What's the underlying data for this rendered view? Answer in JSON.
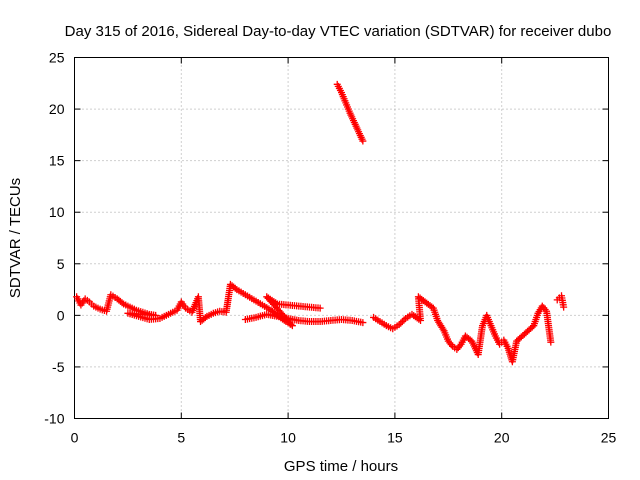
{
  "chart_data": {
    "type": "scatter",
    "title": "Day 315 of 2016, Sidereal Day-to-day VTEC variation (SDTVAR) for receiver dubo",
    "xlabel": "GPS time / hours",
    "ylabel": "SDTVAR / TECUs",
    "xlim": [
      0,
      25
    ],
    "ylim": [
      -10,
      25
    ],
    "xticks": [
      0,
      5,
      10,
      15,
      20,
      25
    ],
    "yticks": [
      -10,
      -5,
      0,
      5,
      10,
      15,
      20,
      25
    ],
    "xtick_labels": [
      "0",
      "5",
      "10",
      "15",
      "20",
      "25"
    ],
    "ytick_labels": [
      "-10",
      "-5",
      "0",
      "5",
      "10",
      "15",
      "20",
      "25"
    ],
    "grid": true,
    "marker": "+",
    "marker_color": "#ff0000",
    "series": [
      {
        "name": "SDTVAR",
        "points": [
          [
            0.1,
            1.8
          ],
          [
            0.2,
            1.4
          ],
          [
            0.3,
            1.0
          ],
          [
            0.5,
            1.6
          ],
          [
            0.7,
            1.3
          ],
          [
            0.9,
            0.9
          ],
          [
            1.2,
            0.6
          ],
          [
            1.5,
            0.4
          ],
          [
            1.7,
            2.0
          ],
          [
            2.0,
            1.6
          ],
          [
            2.3,
            1.1
          ],
          [
            2.6,
            0.8
          ],
          [
            2.9,
            0.5
          ],
          [
            3.2,
            0.3
          ],
          [
            3.5,
            0.1
          ],
          [
            3.8,
            0.0
          ],
          [
            2.5,
            0.2
          ],
          [
            3.0,
            -0.1
          ],
          [
            3.5,
            -0.4
          ],
          [
            4.0,
            -0.3
          ],
          [
            4.5,
            0.2
          ],
          [
            4.8,
            0.5
          ],
          [
            5.0,
            1.3
          ],
          [
            5.2,
            0.7
          ],
          [
            5.5,
            0.3
          ],
          [
            5.8,
            1.8
          ],
          [
            5.9,
            -0.6
          ],
          [
            6.2,
            -0.1
          ],
          [
            6.5,
            0.2
          ],
          [
            6.8,
            0.4
          ],
          [
            7.1,
            0.3
          ],
          [
            7.3,
            3.0
          ],
          [
            7.6,
            2.5
          ],
          [
            8.0,
            2.0
          ],
          [
            8.4,
            1.5
          ],
          [
            8.8,
            1.0
          ],
          [
            9.2,
            0.5
          ],
          [
            9.5,
            0.0
          ],
          [
            9.9,
            -0.6
          ],
          [
            10.2,
            -1.0
          ],
          [
            9.0,
            1.8
          ],
          [
            9.5,
            1.1
          ],
          [
            10.0,
            1.0
          ],
          [
            10.5,
            0.9
          ],
          [
            11.0,
            0.8
          ],
          [
            11.5,
            0.7
          ],
          [
            8.0,
            -0.4
          ],
          [
            8.5,
            -0.2
          ],
          [
            9.0,
            0.1
          ],
          [
            10.5,
            -0.5
          ],
          [
            11.0,
            -0.6
          ],
          [
            11.5,
            -0.6
          ],
          [
            12.0,
            -0.5
          ],
          [
            12.5,
            -0.4
          ],
          [
            13.0,
            -0.5
          ],
          [
            13.5,
            -0.7
          ],
          [
            12.3,
            22.4
          ],
          [
            12.5,
            21.6
          ],
          [
            12.7,
            20.6
          ],
          [
            12.9,
            19.6
          ],
          [
            13.1,
            18.7
          ],
          [
            13.3,
            17.8
          ],
          [
            13.5,
            16.9
          ],
          [
            14.0,
            -0.2
          ],
          [
            14.3,
            -0.6
          ],
          [
            14.6,
            -1.0
          ],
          [
            14.9,
            -1.3
          ],
          [
            15.2,
            -0.9
          ],
          [
            15.5,
            -0.3
          ],
          [
            15.8,
            0.1
          ],
          [
            16.2,
            -0.5
          ],
          [
            16.1,
            1.8
          ],
          [
            16.8,
            0.7
          ],
          [
            17.0,
            -0.5
          ],
          [
            17.3,
            -1.5
          ],
          [
            17.5,
            -2.5
          ],
          [
            17.7,
            -3.0
          ],
          [
            17.9,
            -3.3
          ],
          [
            18.1,
            -2.8
          ],
          [
            18.3,
            -2.0
          ],
          [
            18.6,
            -2.5
          ],
          [
            18.9,
            -3.8
          ],
          [
            19.1,
            -1.0
          ],
          [
            19.3,
            0.0
          ],
          [
            19.5,
            -1.0
          ],
          [
            19.7,
            -2.0
          ],
          [
            19.9,
            -2.8
          ],
          [
            20.1,
            -2.4
          ],
          [
            20.3,
            -3.2
          ],
          [
            20.5,
            -4.5
          ],
          [
            20.7,
            -2.5
          ],
          [
            21.5,
            -1.0
          ],
          [
            21.7,
            0.2
          ],
          [
            21.9,
            0.9
          ],
          [
            22.1,
            0.4
          ],
          [
            22.3,
            -2.6
          ],
          [
            22.6,
            1.5
          ],
          [
            22.8,
            1.9
          ],
          [
            22.9,
            0.8
          ]
        ]
      }
    ]
  }
}
